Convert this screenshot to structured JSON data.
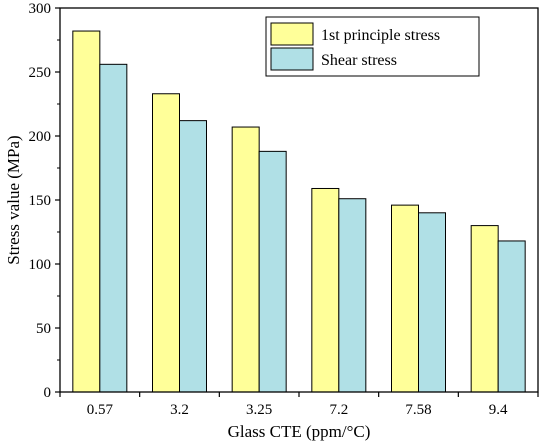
{
  "chart_data": {
    "type": "bar",
    "xlabel": "Glass CTE (ppm/°C)",
    "ylabel": "Stress value (MPa)",
    "categories": [
      "0.57",
      "3.2",
      "3.25",
      "7.2",
      "7.58",
      "9.4"
    ],
    "ylim": [
      0,
      300
    ],
    "yticks": [
      0,
      50,
      100,
      150,
      200,
      250,
      300
    ],
    "grid": false,
    "legend_position": "top-right",
    "series": [
      {
        "name": "1st principle stress",
        "color": "#ffff99",
        "values": [
          282,
          233,
          207,
          159,
          146,
          130
        ]
      },
      {
        "name": "Shear stress",
        "color": "#b0e0e6",
        "values": [
          256,
          212,
          188,
          151,
          140,
          118
        ]
      }
    ]
  }
}
